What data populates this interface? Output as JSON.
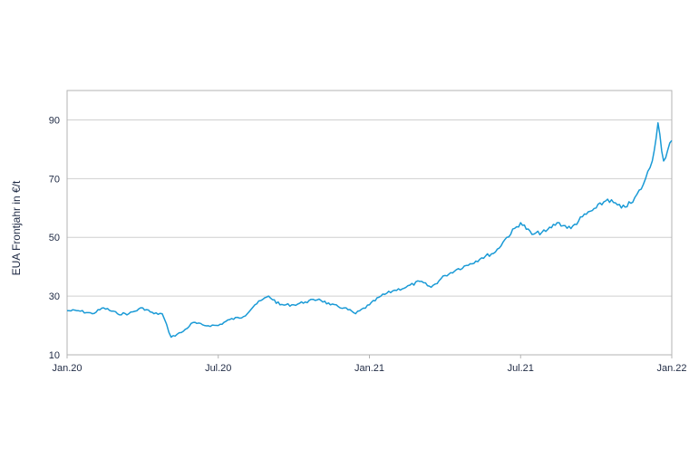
{
  "chart_data": {
    "type": "line",
    "ylabel": "EUA Frontjahr in €/t",
    "xlabel": "",
    "ylim": [
      10,
      100
    ],
    "yticks": [
      10,
      30,
      50,
      70,
      90
    ],
    "xlim": [
      "2020-01",
      "2022-01"
    ],
    "xtick_labels": [
      "Jan.20",
      "Jul.20",
      "Jan.21",
      "Jul.21",
      "Jan.22"
    ],
    "grid": "horizontal",
    "line_color": "#1a9ad6",
    "series": [
      {
        "x": [
          "2020-01-01",
          "2020-01-15",
          "2020-02-01",
          "2020-02-15",
          "2020-03-01",
          "2020-03-15",
          "2020-04-01",
          "2020-04-15",
          "2020-04-25",
          "2020-05-05",
          "2020-05-20",
          "2020-06-01",
          "2020-06-15",
          "2020-07-01",
          "2020-07-15",
          "2020-08-01",
          "2020-08-15",
          "2020-09-01",
          "2020-09-15",
          "2020-10-01",
          "2020-10-15",
          "2020-11-01",
          "2020-11-15",
          "2020-12-01",
          "2020-12-15",
          "2021-01-01",
          "2021-01-15",
          "2021-02-01",
          "2021-02-15",
          "2021-03-01",
          "2021-03-15",
          "2021-04-01",
          "2021-04-15",
          "2021-05-01",
          "2021-05-15",
          "2021-06-01",
          "2021-06-15",
          "2021-07-01",
          "2021-07-15",
          "2021-08-01",
          "2021-08-15",
          "2021-09-01",
          "2021-09-15",
          "2021-10-01",
          "2021-10-15",
          "2021-11-01",
          "2021-11-15",
          "2021-11-28",
          "2021-12-08",
          "2021-12-15",
          "2021-12-22",
          "2022-01-01"
        ],
        "values": [
          25,
          25,
          24,
          26,
          24,
          24,
          26,
          24,
          24,
          16,
          18,
          21,
          20,
          20,
          22,
          23,
          27,
          30,
          27,
          27,
          28,
          29,
          27,
          26,
          24,
          27,
          30,
          32,
          33,
          35,
          33,
          37,
          39,
          41,
          43,
          45,
          50,
          55,
          51,
          52,
          55,
          53,
          57,
          60,
          63,
          60,
          62,
          68,
          76,
          89,
          76,
          83
        ]
      }
    ]
  }
}
